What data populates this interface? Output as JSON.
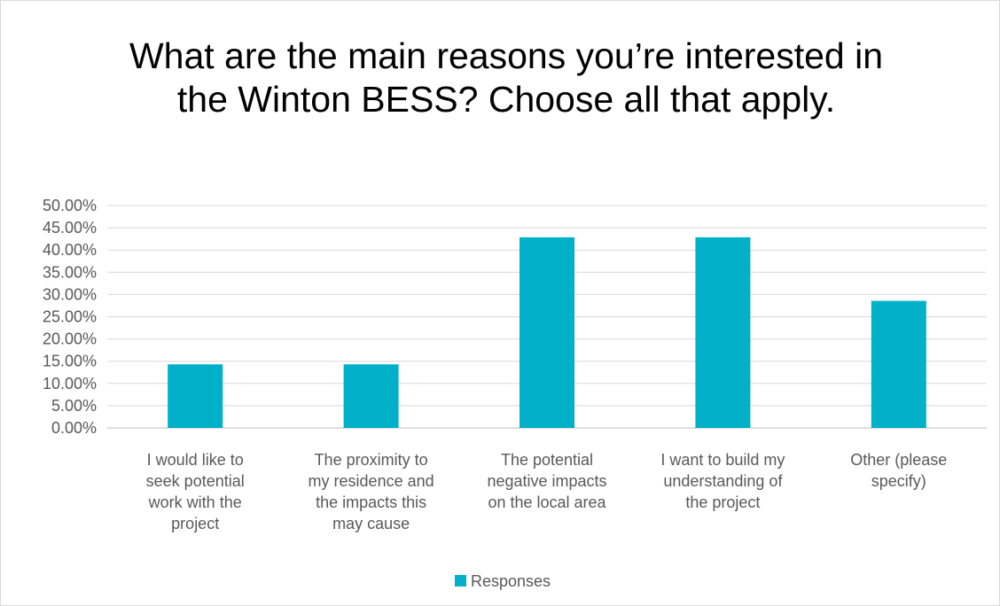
{
  "chart_data": {
    "type": "bar",
    "title": "What are the main reasons you’re interested in the Winton BESS? Choose all that apply.",
    "categories": [
      [
        "I would like to",
        "seek potential",
        "work with the",
        "project"
      ],
      [
        "The proximity to",
        "my residence and",
        "the impacts this",
        "may cause"
      ],
      [
        "The potential",
        "negative impacts",
        "on the local area"
      ],
      [
        "I want to build my",
        "understanding of",
        "the project"
      ],
      [
        "Other (please",
        "specify)"
      ]
    ],
    "series": [
      {
        "name": "Responses",
        "values": [
          14.29,
          14.29,
          42.86,
          42.86,
          28.57
        ]
      }
    ],
    "ylim": [
      0,
      50
    ],
    "yticks": [
      "0.00%",
      "5.00%",
      "10.00%",
      "15.00%",
      "20.00%",
      "25.00%",
      "30.00%",
      "35.00%",
      "40.00%",
      "45.00%",
      "50.00%"
    ],
    "grid": true,
    "legend": "bottom",
    "colors": {
      "bar": "#00b0c9",
      "grid": "#d9d9d9",
      "text": "#595959"
    }
  }
}
